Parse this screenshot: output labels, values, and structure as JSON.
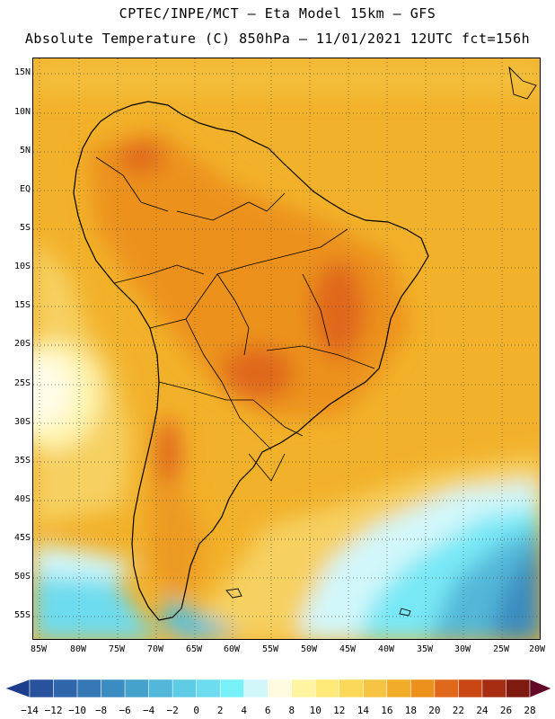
{
  "header": {
    "line1": "CPTEC/INPE/MCT —  Eta Model 15km — GFS",
    "line2": "Absolute Temperature (C) 850hPa — 11/01/2021 12UTC fct=156h"
  },
  "map": {
    "lat_labels": [
      "15N",
      "10N",
      "5N",
      "EQ",
      "5S",
      "10S",
      "15S",
      "20S",
      "25S",
      "30S",
      "35S",
      "40S",
      "45S",
      "50S",
      "55S"
    ],
    "lon_labels": [
      "85W",
      "80W",
      "75W",
      "70W",
      "65W",
      "60W",
      "55W",
      "50W",
      "45W",
      "40W",
      "35W",
      "30W",
      "25W",
      "20W"
    ]
  },
  "colorbar": {
    "labels": [
      "-14",
      "-12",
      "-10",
      "-8",
      "-6",
      "-4",
      "-2",
      "0",
      "2",
      "4",
      "6",
      "8",
      "10",
      "12",
      "14",
      "16",
      "18",
      "20",
      "22",
      "24",
      "26",
      "28"
    ],
    "colors": [
      "#1c3e8c",
      "#28529c",
      "#2f66aa",
      "#3578b5",
      "#3b8cc0",
      "#45a2cb",
      "#52b7d8",
      "#5fcbe4",
      "#6ddcee",
      "#78f0f8",
      "#d2f7fa",
      "#fffbe0",
      "#fff5a0",
      "#feea78",
      "#fbd85a",
      "#f6c444",
      "#f1ad2a",
      "#ec921c",
      "#e0681a",
      "#c94615",
      "#a62d12",
      "#7e1a10",
      "#620a28"
    ]
  },
  "palette": {
    "land_outline": "#000000",
    "grid": "#555555"
  }
}
